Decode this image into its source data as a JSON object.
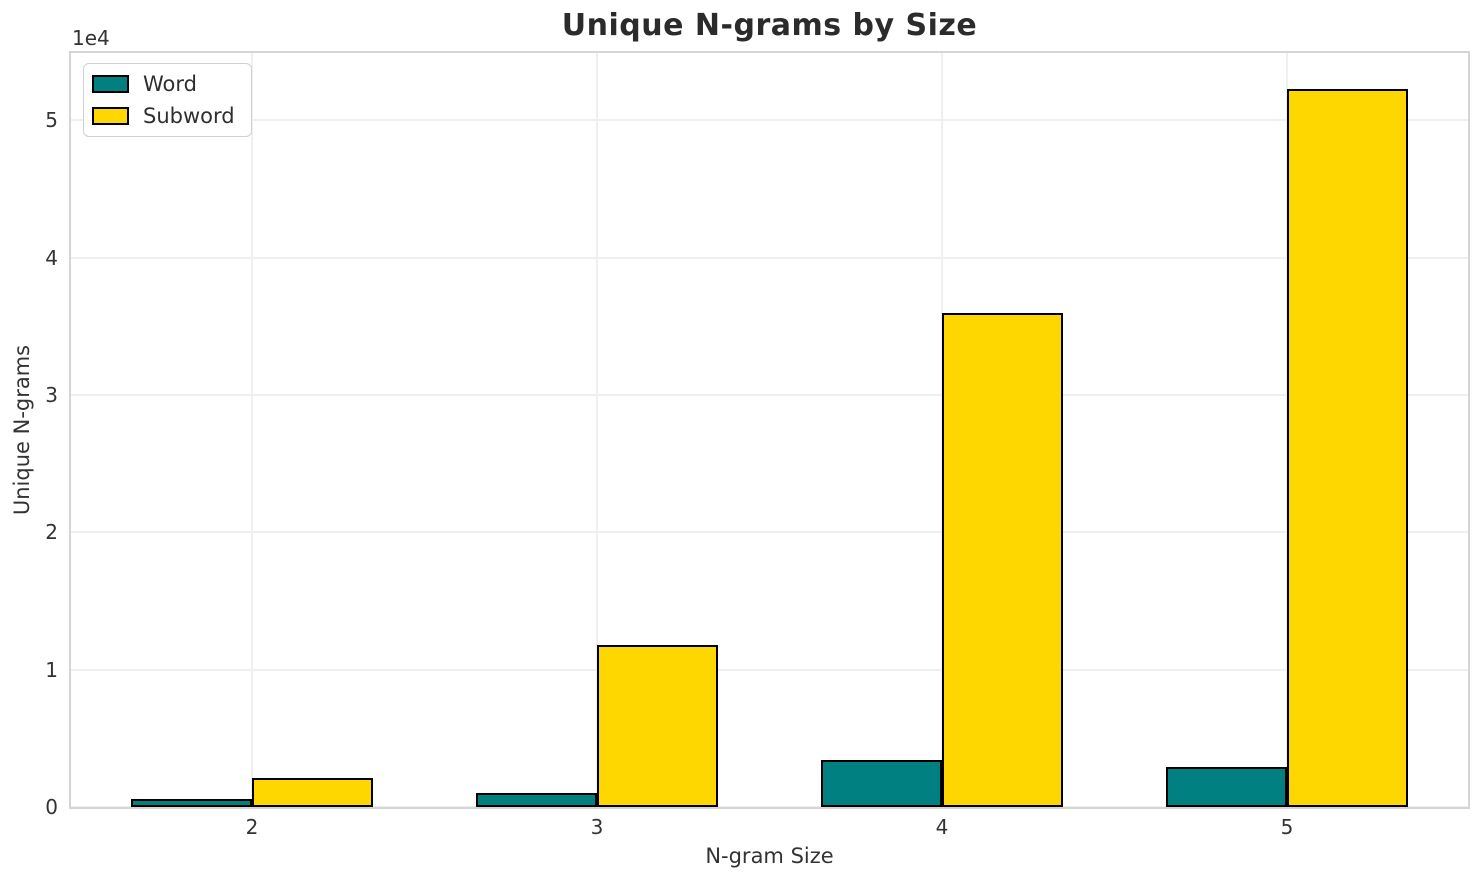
{
  "chart_data": {
    "type": "bar",
    "title": "Unique N-grams by Size",
    "xlabel": "N-gram Size",
    "ylabel": "Unique N-grams",
    "y_axis_offset_text": "1e4",
    "categories": [
      "2",
      "3",
      "4",
      "5"
    ],
    "series": [
      {
        "name": "Word",
        "color": "#008080",
        "values": [
          600,
          1000,
          3400,
          2900
        ]
      },
      {
        "name": "Subword",
        "color": "#FFD700",
        "values": [
          2100,
          11800,
          36000,
          52300
        ]
      }
    ],
    "ylim": [
      0,
      54900
    ],
    "yticks": [
      0,
      10000,
      20000,
      30000,
      40000,
      50000
    ],
    "ytick_labels": [
      "0",
      "1",
      "2",
      "3",
      "4",
      "5"
    ],
    "grid": true,
    "legend_position": "upper left",
    "bar_edge_color": "#000000",
    "bar_width_fraction": 0.35
  }
}
